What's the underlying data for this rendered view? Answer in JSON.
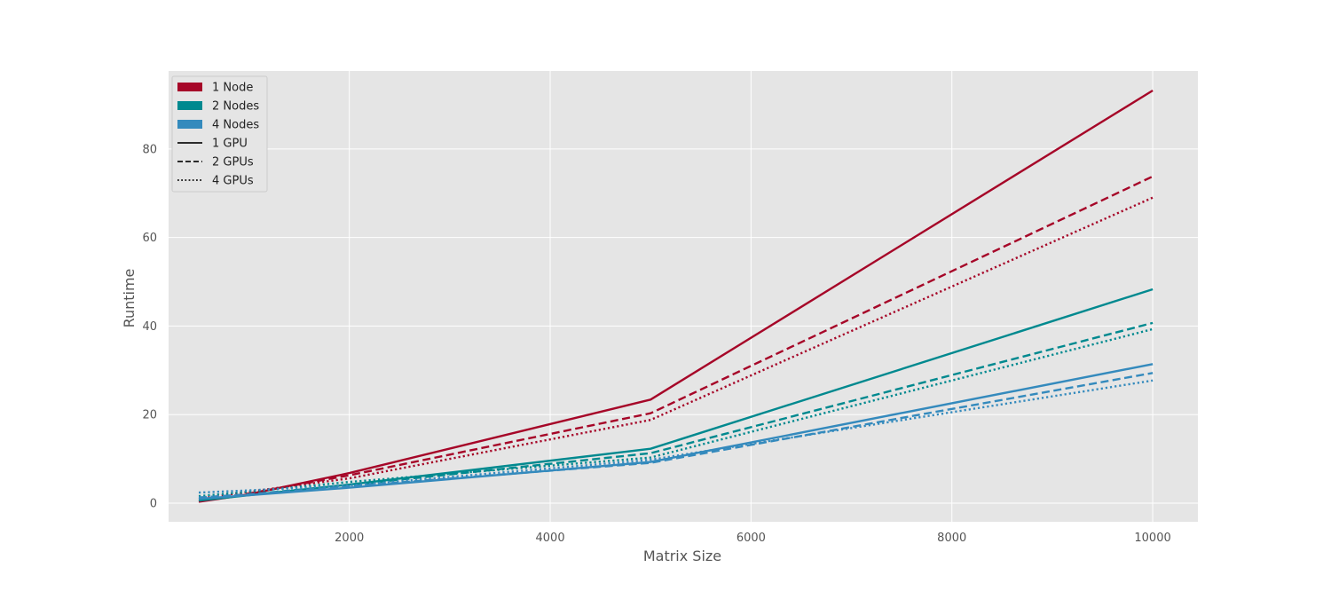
{
  "chart_data": {
    "type": "line",
    "xlabel": "Matrix Size",
    "ylabel": "Runtime",
    "xlim": [
      200,
      10450
    ],
    "ylim": [
      -4.2,
      97.6
    ],
    "x_ticks": [
      2000,
      4000,
      6000,
      8000,
      10000
    ],
    "y_ticks": [
      0,
      20,
      40,
      60,
      80
    ],
    "grid": true,
    "legend_placement": "top-left",
    "colors": {
      "1 Node": "#A60628",
      "2 Nodes": "#00898F",
      "4 Nodes": "#348ABD"
    },
    "dash_styles": {
      "1 GPU": "solid",
      "2 GPUs": "dashed",
      "4 GPUs": "dotted"
    },
    "legend": [
      {
        "label": "1 Node",
        "kind": "color",
        "key": "1 Node"
      },
      {
        "label": "2 Nodes",
        "kind": "color",
        "key": "2 Nodes"
      },
      {
        "label": "4 Nodes",
        "kind": "color",
        "key": "4 Nodes"
      },
      {
        "label": "1 GPU",
        "kind": "dash",
        "key": "1 GPU"
      },
      {
        "label": "2 GPUs",
        "kind": "dash",
        "key": "2 GPUs"
      },
      {
        "label": "4 GPUs",
        "kind": "dash",
        "key": "4 GPUs"
      }
    ],
    "x": [
      500,
      1000,
      2000,
      5000,
      10000
    ],
    "series": [
      {
        "node": "1 Node",
        "gpu": "1 GPU",
        "values": [
          0.3,
          2.0,
          6.8,
          23.4,
          93.2
        ]
      },
      {
        "node": "1 Node",
        "gpu": "2 GPUs",
        "values": [
          0.5,
          2.2,
          6.3,
          20.3,
          73.8
        ]
      },
      {
        "node": "1 Node",
        "gpu": "4 GPUs",
        "values": [
          1.0,
          2.6,
          5.6,
          18.8,
          69.0
        ]
      },
      {
        "node": "2 Nodes",
        "gpu": "1 GPU",
        "values": [
          0.6,
          1.8,
          4.2,
          12.3,
          48.3
        ]
      },
      {
        "node": "2 Nodes",
        "gpu": "2 GPUs",
        "values": [
          1.0,
          2.0,
          4.1,
          11.3,
          40.7
        ]
      },
      {
        "node": "2 Nodes",
        "gpu": "4 GPUs",
        "values": [
          1.6,
          2.6,
          4.8,
          10.3,
          39.3
        ]
      },
      {
        "node": "4 Nodes",
        "gpu": "1 GPU",
        "values": [
          1.0,
          1.8,
          3.5,
          9.3,
          31.4
        ]
      },
      {
        "node": "4 Nodes",
        "gpu": "2 GPUs",
        "values": [
          1.3,
          2.0,
          3.8,
          9.1,
          29.4
        ]
      },
      {
        "node": "4 Nodes",
        "gpu": "4 GPUs",
        "values": [
          2.4,
          2.9,
          4.0,
          9.8,
          27.7
        ]
      }
    ]
  }
}
